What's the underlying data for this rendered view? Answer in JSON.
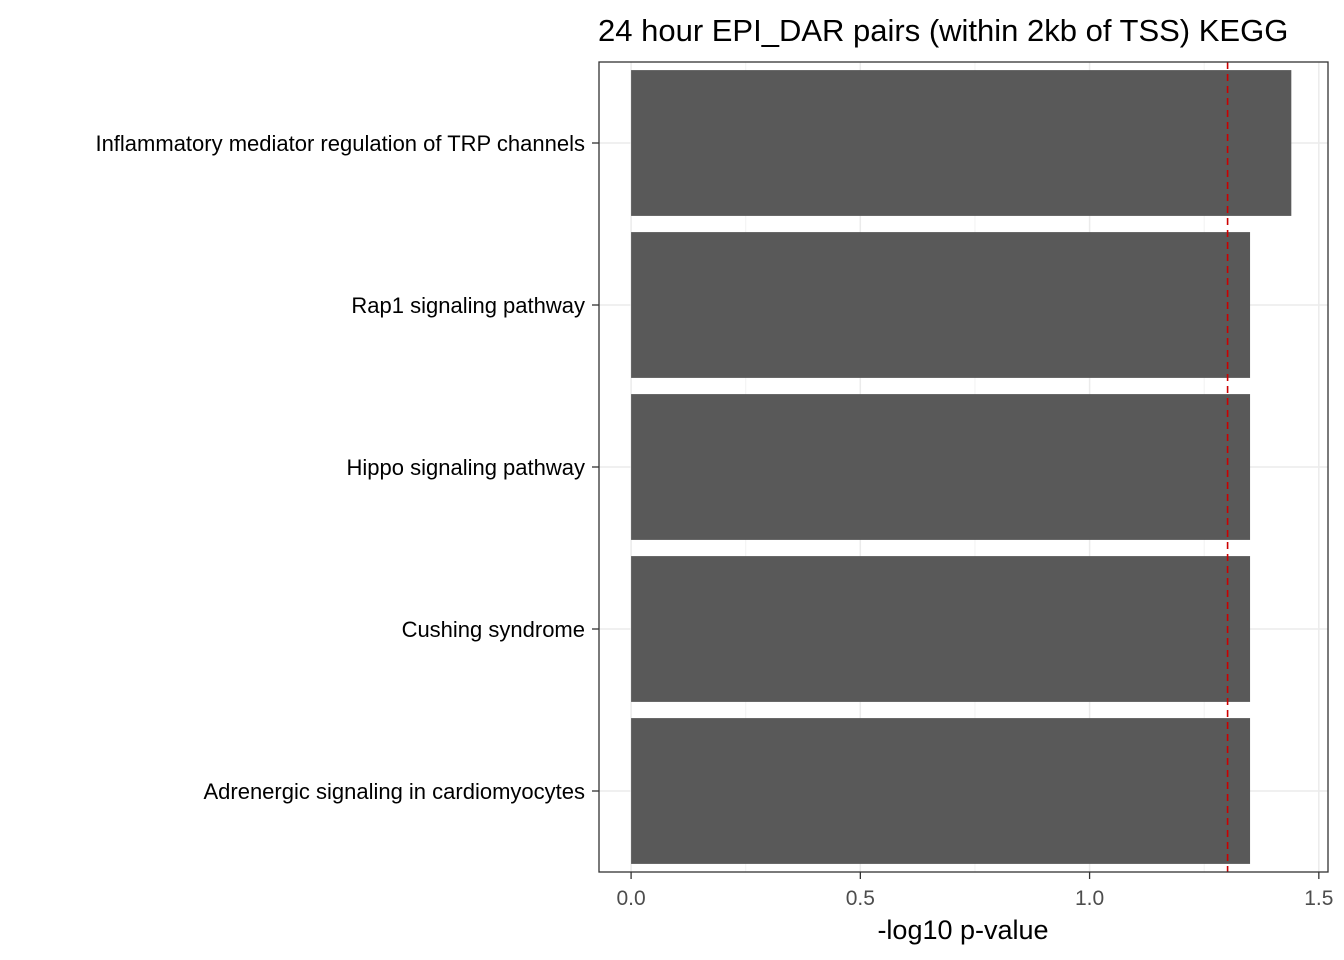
{
  "chart_data": {
    "type": "bar",
    "orientation": "horizontal",
    "title": "24 hour EPI_DAR pairs (within 2kb of TSS) KEGG",
    "xlabel": "-log10 p-value",
    "ylabel": "",
    "categories": [
      "Inflammatory mediator regulation of TRP channels",
      "Rap1 signaling pathway",
      "Hippo signaling pathway",
      "Cushing syndrome",
      "Adrenergic signaling in cardiomyocytes"
    ],
    "values": [
      1.44,
      1.35,
      1.35,
      1.35,
      1.35
    ],
    "xlim": [
      -0.07,
      1.52
    ],
    "x_ticks": [
      0.0,
      0.5,
      1.0,
      1.5
    ],
    "x_tick_labels": [
      "0.0",
      "0.5",
      "1.0",
      "1.5"
    ],
    "threshold": 1.301,
    "grid": true,
    "colors": {
      "bar": "#595959",
      "threshold_line": "#cc0000",
      "grid_major": "#ebebeb",
      "grid_minor": "#f2f2f2",
      "panel_border": "#333333"
    }
  }
}
